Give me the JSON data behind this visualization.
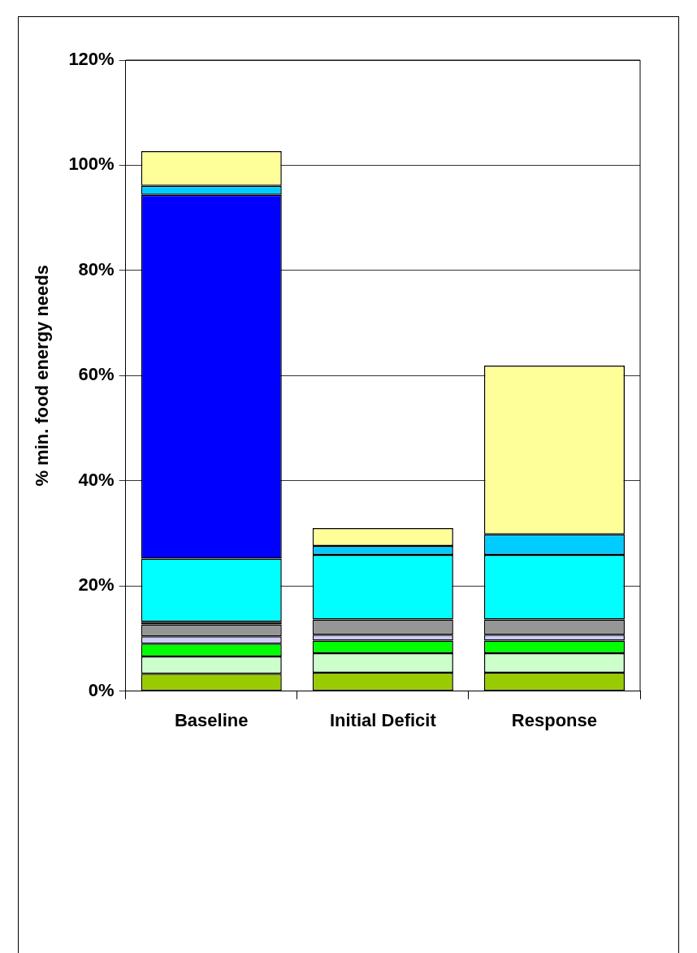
{
  "chart_data": {
    "type": "bar",
    "stacked": true,
    "ylabel": "% min. food energy needs",
    "categories": [
      "Baseline",
      "Initial Deficit",
      "Response"
    ],
    "series": [
      {
        "color": "#99cc00",
        "values": [
          3.3,
          3.5,
          3.5
        ]
      },
      {
        "color": "#ccffcc",
        "values": [
          3.3,
          3.7,
          3.7
        ]
      },
      {
        "color": "#00ff00",
        "values": [
          2.4,
          2.4,
          2.4
        ]
      },
      {
        "color": "#ccccff",
        "values": [
          1.4,
          1.1,
          1.1
        ]
      },
      {
        "color": "#969696",
        "values": [
          2.3,
          2.9,
          2.9
        ]
      },
      {
        "color": "#000000",
        "values": [
          0.5,
          null,
          null
        ]
      },
      {
        "color": "#00ffff",
        "values": [
          12.0,
          12.3,
          12.3
        ]
      },
      {
        "color": "#0000ff",
        "values": [
          69.2,
          null,
          null
        ]
      },
      {
        "color": "#00ccff",
        "values": [
          1.7,
          1.7,
          3.9
        ]
      },
      {
        "color": "#ffff99",
        "values": [
          6.6,
          3.4,
          32.1
        ]
      }
    ],
    "ylim": [
      0,
      120
    ],
    "yticks": [
      {
        "value": 0,
        "label": "0%"
      },
      {
        "value": 20,
        "label": "20%"
      },
      {
        "value": 40,
        "label": "40%"
      },
      {
        "value": 60,
        "label": "60%"
      },
      {
        "value": 80,
        "label": "80%"
      },
      {
        "value": 100,
        "label": "100%"
      },
      {
        "value": 120,
        "label": "120%"
      }
    ],
    "grid": "y",
    "legend": false
  }
}
